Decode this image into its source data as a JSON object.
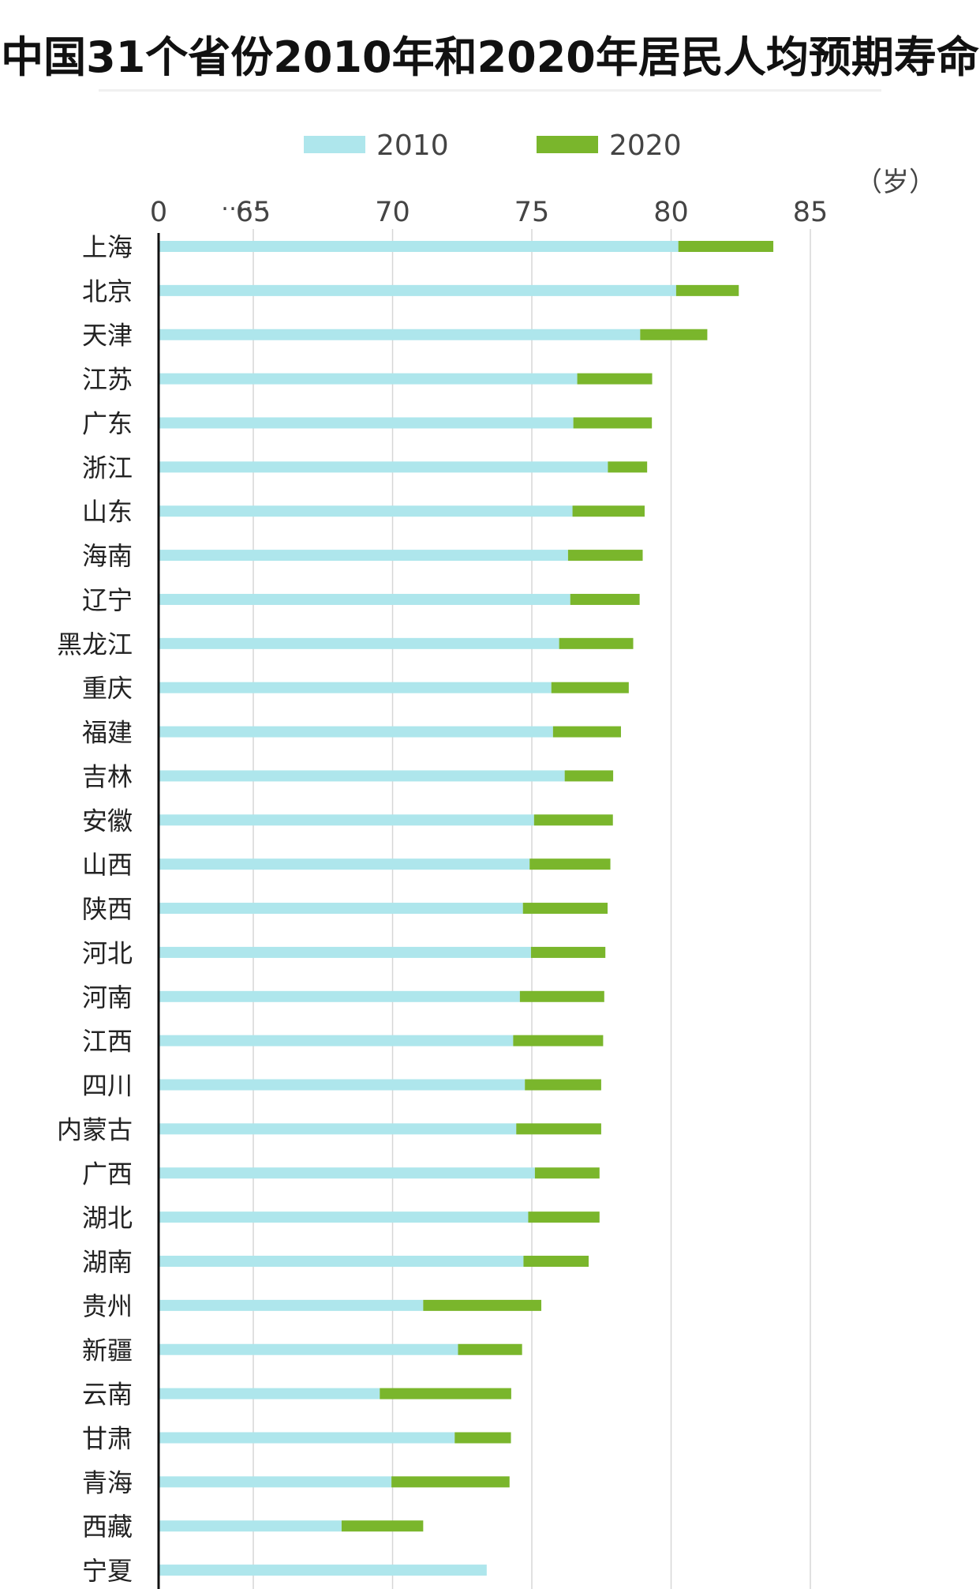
{
  "title": "中国31个省份2010年和2020年居民人均预期寿命",
  "chart_data": {
    "type": "bar",
    "orientation": "horizontal",
    "title": "中国31个省份2010年和2020年居民人均预期寿命",
    "unit": "（岁）",
    "axis_break_label": "……",
    "x_ticks": [
      "0",
      "65",
      "70",
      "75",
      "80",
      "85"
    ],
    "xlim": [
      61.6,
      85
    ],
    "grid": true,
    "legend_position": "top",
    "categories": [
      "上海",
      "北京",
      "天津",
      "江苏",
      "广东",
      "浙江",
      "山东",
      "海南",
      "辽宁",
      "黑龙江",
      "重庆",
      "福建",
      "吉林",
      "安徽",
      "山西",
      "陕西",
      "河北",
      "河南",
      "江西",
      "四川",
      "内蒙古",
      "广西",
      "湖北",
      "湖南",
      "贵州",
      "新疆",
      "云南",
      "甘肃",
      "青海",
      "西藏",
      "宁夏"
    ],
    "series": [
      {
        "name": "2010",
        "color": "#aee6ec",
        "values": [
          80.26,
          80.18,
          78.89,
          76.63,
          76.49,
          77.73,
          76.46,
          76.3,
          76.38,
          75.98,
          75.7,
          75.76,
          76.18,
          75.08,
          74.92,
          74.68,
          74.97,
          74.57,
          74.33,
          74.75,
          74.44,
          75.11,
          74.87,
          74.7,
          71.1,
          72.35,
          69.54,
          72.23,
          69.96,
          68.17,
          73.38
        ]
      },
      {
        "name": "2020",
        "color": "#7ab62c",
        "values": [
          83.67,
          82.43,
          81.3,
          79.32,
          79.31,
          79.14,
          79.05,
          78.98,
          78.87,
          78.64,
          78.48,
          78.2,
          77.92,
          77.91,
          77.82,
          77.72,
          77.64,
          77.6,
          77.56,
          77.49,
          77.49,
          77.43,
          77.43,
          77.04,
          75.34,
          74.65,
          74.26,
          74.25,
          74.2,
          71.1,
          null
        ]
      }
    ]
  }
}
